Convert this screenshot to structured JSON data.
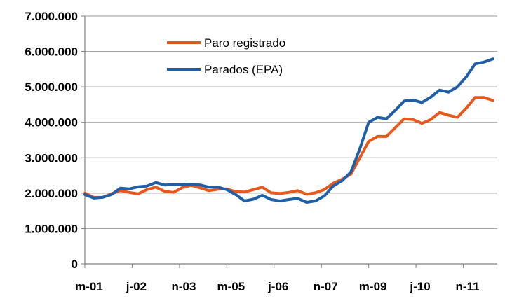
{
  "chart_data": {
    "type": "line",
    "title": "",
    "xlabel": "",
    "ylabel": "",
    "ylim": [
      0,
      7000000
    ],
    "yticks": [
      0,
      1000000,
      2000000,
      3000000,
      4000000,
      5000000,
      6000000,
      7000000
    ],
    "ytick_labels": [
      "0",
      "1.000.000",
      "2.000.000",
      "3.000.000",
      "4.000.000",
      "5.000.000",
      "6.000.000",
      "7.000.000"
    ],
    "xtick_labels": [
      "m-01",
      "j-02",
      "n-03",
      "m-05",
      "j-06",
      "n-07",
      "m-09",
      "j-10",
      "n-11"
    ],
    "xtick_positions": [
      0,
      5.33,
      10.67,
      16,
      21.33,
      26.67,
      32,
      37.33,
      42.67
    ],
    "x_range": [
      0,
      46.5
    ],
    "grid": true,
    "legend_position": "top-center",
    "series": [
      {
        "name": "Paro registrado",
        "color": "#e8571b",
        "x": [
          0,
          1,
          2,
          3,
          4,
          5,
          6,
          7,
          8,
          9,
          10,
          11,
          12,
          13,
          14,
          15,
          16,
          17,
          18,
          19,
          20,
          21,
          22,
          23,
          24,
          25,
          26,
          27,
          28,
          29,
          30,
          31,
          32,
          33,
          34,
          35,
          36,
          37,
          38,
          39,
          40,
          41,
          42,
          43,
          44,
          45,
          46
        ],
        "values": [
          2000000,
          1880000,
          1880000,
          1980000,
          2070000,
          2020000,
          1980000,
          2100000,
          2170000,
          2050000,
          2020000,
          2160000,
          2220000,
          2150000,
          2070000,
          2110000,
          2120000,
          2040000,
          2030000,
          2100000,
          2170000,
          2010000,
          1990000,
          2020000,
          2070000,
          1970000,
          2010000,
          2100000,
          2280000,
          2390000,
          2540000,
          3000000,
          3460000,
          3600000,
          3600000,
          3850000,
          4100000,
          4080000,
          3970000,
          4080000,
          4280000,
          4200000,
          4140000,
          4400000,
          4700000,
          4700000,
          4620000
        ]
      },
      {
        "name": "Parados (EPA)",
        "color": "#1f5fa8",
        "x": [
          0,
          1,
          2,
          3,
          4,
          5,
          6,
          7,
          8,
          9,
          10,
          11,
          12,
          13,
          14,
          15,
          16,
          17,
          18,
          19,
          20,
          21,
          22,
          23,
          24,
          25,
          26,
          27,
          28,
          29,
          30,
          31,
          32,
          33,
          34,
          35,
          36,
          37,
          38,
          39,
          40,
          41,
          42,
          43,
          44,
          45,
          46
        ],
        "values": [
          1960000,
          1860000,
          1880000,
          1960000,
          2140000,
          2120000,
          2180000,
          2200000,
          2300000,
          2230000,
          2240000,
          2240000,
          2250000,
          2230000,
          2170000,
          2170000,
          2100000,
          1960000,
          1780000,
          1830000,
          1940000,
          1820000,
          1780000,
          1820000,
          1850000,
          1740000,
          1780000,
          1920000,
          2200000,
          2350000,
          2600000,
          3250000,
          4000000,
          4140000,
          4100000,
          4340000,
          4600000,
          4630000,
          4560000,
          4710000,
          4910000,
          4850000,
          5000000,
          5280000,
          5650000,
          5700000,
          5790000
        ]
      }
    ]
  }
}
